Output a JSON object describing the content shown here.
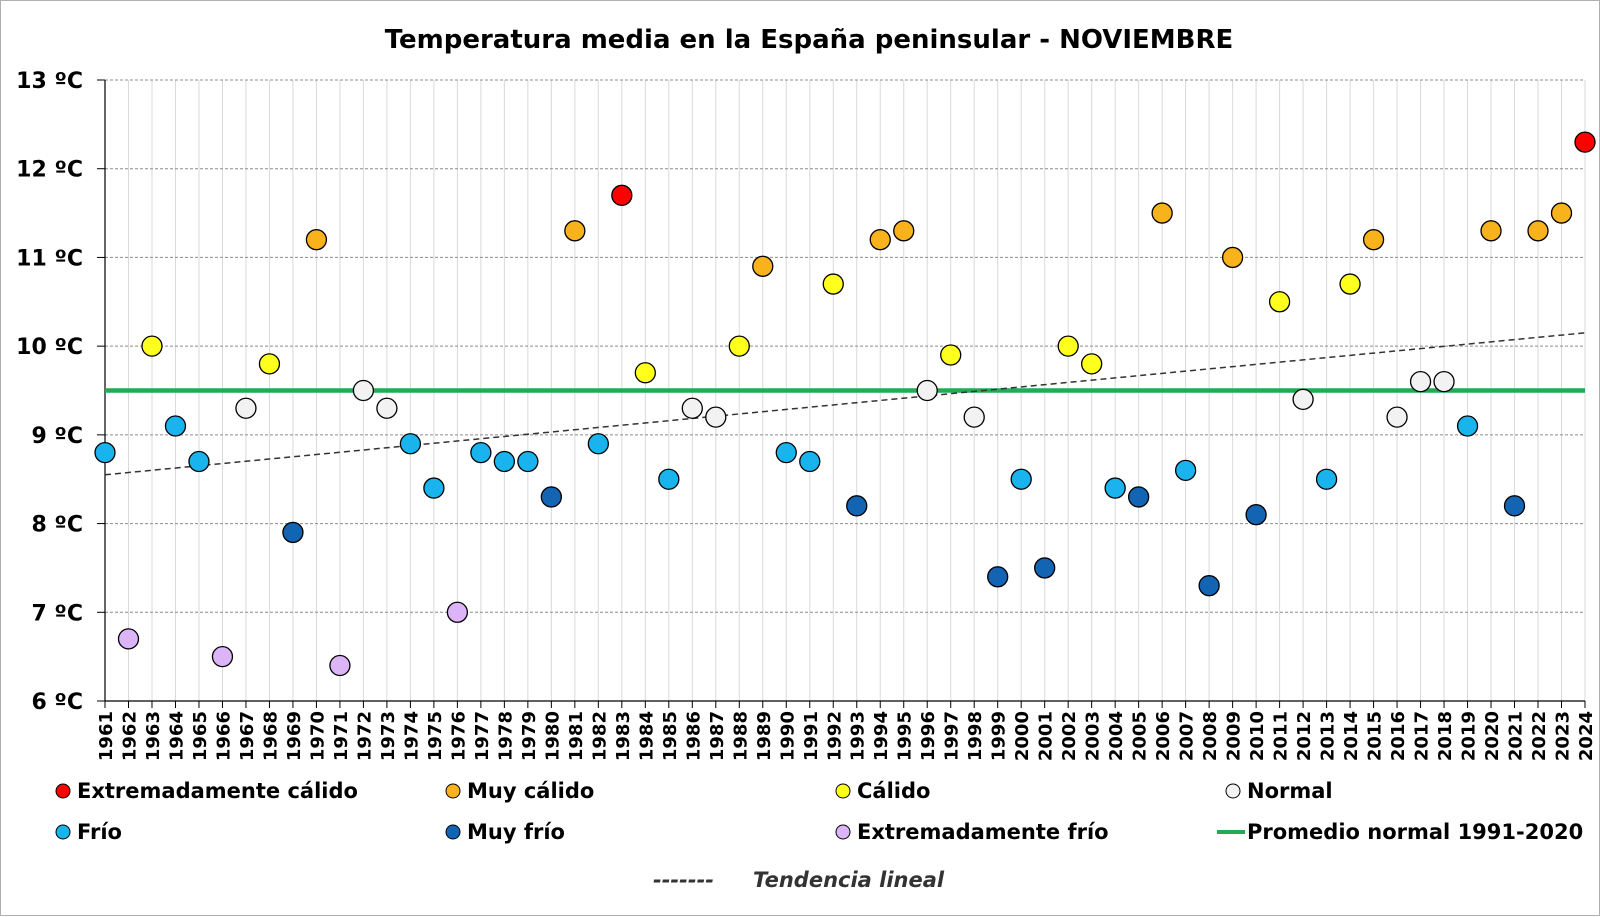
{
  "chart_data": {
    "type": "scatter",
    "title": "Temperatura media en la España peninsular - NOVIEMBRE",
    "xlabel": "",
    "ylabel": "",
    "y_unit": "ºC",
    "ylim": [
      6,
      13
    ],
    "y_ticks": [
      6,
      7,
      8,
      9,
      10,
      11,
      12,
      13
    ],
    "y_tick_labels": [
      "6 ºC",
      "7 ºC",
      "8 ºC",
      "9 ºC",
      "10 ºC",
      "11 ºC",
      "12 ºC",
      "13 ºC"
    ],
    "grid": true,
    "categories": {
      "ext_calido": {
        "label": "Extremadamente cálido",
        "color": "#ff0000"
      },
      "muy_calido": {
        "label": "Muy cálido",
        "color": "#f8b21c"
      },
      "calido": {
        "label": "Cálido",
        "color": "#ffff1e"
      },
      "normal": {
        "label": "Normal",
        "color": "#f2f2f2"
      },
      "frio": {
        "label": "Frío",
        "color": "#19b4ee"
      },
      "muy_frio": {
        "label": "Muy frío",
        "color": "#1464b4"
      },
      "ext_frio": {
        "label": "Extremadamente frío",
        "color": "#dcb4f8"
      }
    },
    "points": [
      {
        "year": "1961",
        "value": 8.8,
        "cat": "frio"
      },
      {
        "year": "1962",
        "value": 6.7,
        "cat": "ext_frio"
      },
      {
        "year": "1963",
        "value": 10.0,
        "cat": "calido"
      },
      {
        "year": "1964",
        "value": 9.1,
        "cat": "frio"
      },
      {
        "year": "1965",
        "value": 8.7,
        "cat": "frio"
      },
      {
        "year": "1966",
        "value": 6.5,
        "cat": "ext_frio"
      },
      {
        "year": "1967",
        "value": 9.3,
        "cat": "normal"
      },
      {
        "year": "1968",
        "value": 9.8,
        "cat": "calido"
      },
      {
        "year": "1969",
        "value": 7.9,
        "cat": "muy_frio"
      },
      {
        "year": "1970",
        "value": 11.2,
        "cat": "muy_calido"
      },
      {
        "year": "1971",
        "value": 6.4,
        "cat": "ext_frio"
      },
      {
        "year": "1972",
        "value": 9.5,
        "cat": "normal"
      },
      {
        "year": "1973",
        "value": 9.3,
        "cat": "normal"
      },
      {
        "year": "1974",
        "value": 8.9,
        "cat": "frio"
      },
      {
        "year": "1975",
        "value": 8.4,
        "cat": "frio"
      },
      {
        "year": "1976",
        "value": 7.0,
        "cat": "ext_frio"
      },
      {
        "year": "1977",
        "value": 8.8,
        "cat": "frio"
      },
      {
        "year": "1978",
        "value": 8.7,
        "cat": "frio"
      },
      {
        "year": "1979",
        "value": 8.7,
        "cat": "frio"
      },
      {
        "year": "1980",
        "value": 8.3,
        "cat": "muy_frio"
      },
      {
        "year": "1981",
        "value": 11.3,
        "cat": "muy_calido"
      },
      {
        "year": "1982",
        "value": 8.9,
        "cat": "frio"
      },
      {
        "year": "1983",
        "value": 11.7,
        "cat": "ext_calido"
      },
      {
        "year": "1984",
        "value": 9.7,
        "cat": "calido"
      },
      {
        "year": "1985",
        "value": 8.5,
        "cat": "frio"
      },
      {
        "year": "1986",
        "value": 9.3,
        "cat": "normal"
      },
      {
        "year": "1987",
        "value": 9.2,
        "cat": "normal"
      },
      {
        "year": "1988",
        "value": 10.0,
        "cat": "calido"
      },
      {
        "year": "1989",
        "value": 10.9,
        "cat": "muy_calido"
      },
      {
        "year": "1990",
        "value": 8.8,
        "cat": "frio"
      },
      {
        "year": "1991",
        "value": 8.7,
        "cat": "frio"
      },
      {
        "year": "1992",
        "value": 10.7,
        "cat": "calido"
      },
      {
        "year": "1993",
        "value": 8.2,
        "cat": "muy_frio"
      },
      {
        "year": "1994",
        "value": 11.2,
        "cat": "muy_calido"
      },
      {
        "year": "1995",
        "value": 11.3,
        "cat": "muy_calido"
      },
      {
        "year": "1996",
        "value": 9.5,
        "cat": "normal"
      },
      {
        "year": "1997",
        "value": 9.9,
        "cat": "calido"
      },
      {
        "year": "1998",
        "value": 9.2,
        "cat": "normal"
      },
      {
        "year": "1999",
        "value": 7.4,
        "cat": "muy_frio"
      },
      {
        "year": "2000",
        "value": 8.5,
        "cat": "frio"
      },
      {
        "year": "2001",
        "value": 7.5,
        "cat": "muy_frio"
      },
      {
        "year": "2002",
        "value": 10.0,
        "cat": "calido"
      },
      {
        "year": "2003",
        "value": 9.8,
        "cat": "calido"
      },
      {
        "year": "2004",
        "value": 8.4,
        "cat": "frio"
      },
      {
        "year": "2005",
        "value": 8.3,
        "cat": "muy_frio"
      },
      {
        "year": "2006",
        "value": 11.5,
        "cat": "muy_calido"
      },
      {
        "year": "2007",
        "value": 8.6,
        "cat": "frio"
      },
      {
        "year": "2008",
        "value": 7.3,
        "cat": "muy_frio"
      },
      {
        "year": "2009",
        "value": 11.0,
        "cat": "muy_calido"
      },
      {
        "year": "2010",
        "value": 8.1,
        "cat": "muy_frio"
      },
      {
        "year": "2011",
        "value": 10.5,
        "cat": "calido"
      },
      {
        "year": "2012",
        "value": 9.4,
        "cat": "normal"
      },
      {
        "year": "2013",
        "value": 8.5,
        "cat": "frio"
      },
      {
        "year": "2014",
        "value": 10.7,
        "cat": "calido"
      },
      {
        "year": "2015",
        "value": 11.2,
        "cat": "muy_calido"
      },
      {
        "year": "2016",
        "value": 9.2,
        "cat": "normal"
      },
      {
        "year": "2017",
        "value": 9.6,
        "cat": "normal"
      },
      {
        "year": "2018",
        "value": 9.6,
        "cat": "normal"
      },
      {
        "year": "2019",
        "value": 9.1,
        "cat": "frio"
      },
      {
        "year": "2020",
        "value": 11.3,
        "cat": "muy_calido"
      },
      {
        "year": "2021",
        "value": 8.2,
        "cat": "muy_frio"
      },
      {
        "year": "2022",
        "value": 11.3,
        "cat": "muy_calido"
      },
      {
        "year": "2023",
        "value": 11.5,
        "cat": "muy_calido"
      },
      {
        "year": "2024",
        "value": 12.3,
        "cat": "ext_calido"
      }
    ],
    "normal_line": {
      "label": "Promedio normal 1991-2020",
      "value": 9.5,
      "color": "#22aa55"
    },
    "trend_line": {
      "label": "Tendencia lineal",
      "start": 8.55,
      "end": 10.15,
      "legend_marker": "-------"
    },
    "legend_order": [
      "ext_calido",
      "muy_calido",
      "calido",
      "normal",
      "frio",
      "muy_frio",
      "ext_frio"
    ],
    "legend_placement": "bottom"
  }
}
